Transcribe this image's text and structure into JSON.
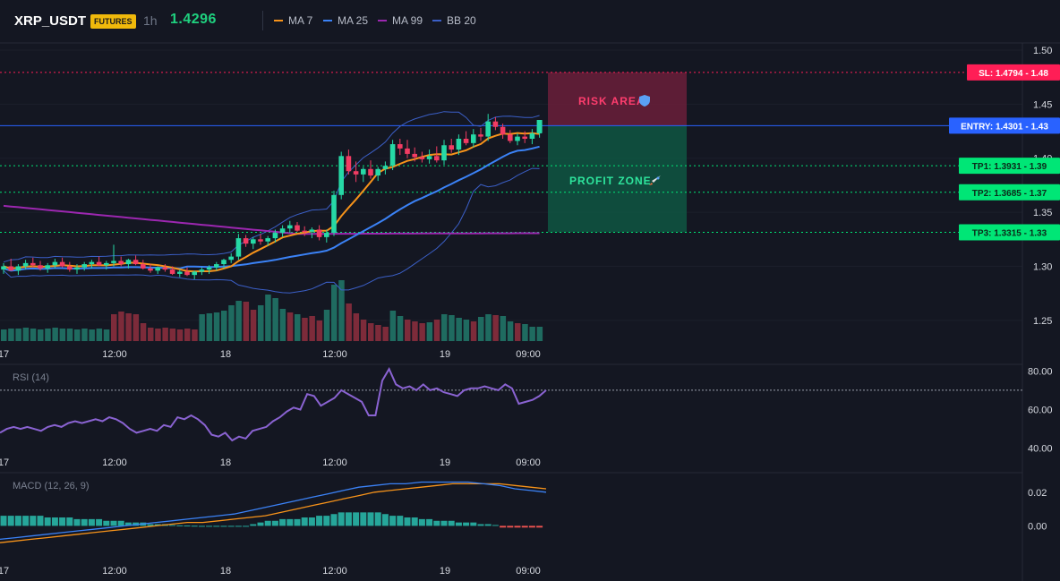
{
  "header": {
    "symbol": "XRP_USDT",
    "badge": "FUTURES",
    "timeframe": "1h",
    "last_price": "1.4296",
    "indicators": [
      {
        "label": "MA 7",
        "color": "#f7931a"
      },
      {
        "label": "MA 25",
        "color": "#3b82f6"
      },
      {
        "label": "MA 99",
        "color": "#9c27b0"
      },
      {
        "label": "BB 20",
        "color": "#3b5fc7"
      }
    ]
  },
  "colors": {
    "up": "#26d9a6",
    "down": "#f23c63",
    "vol_up": "#1f6b60",
    "vol_down": "#7d2b3a",
    "ma7": "#f7931a",
    "ma25": "#3b82f6",
    "ma99": "#9c27b0",
    "bb": "#3b5fc7",
    "rsi": "#8a63d2",
    "macd": "#3b82f6",
    "signal": "#f7931a",
    "entry": "#2962ff",
    "sl": "#ff1e56",
    "tp": "#00e676",
    "risk_zone": "#6a1f3a",
    "profit_zone": "#0e5a45"
  },
  "trade": {
    "risk_label": "RISK AREA",
    "risk_icon": "shield-icon",
    "profit_label": "PROFIT ZONE",
    "profit_icon": "rocket-icon",
    "levels": [
      {
        "key": "sl",
        "label": "SL: 1.4794 - 1.48",
        "value": 1.4794
      },
      {
        "key": "entry",
        "label": "ENTRY: 1.4301 - 1.43",
        "value": 1.4301
      },
      {
        "key": "tp1",
        "label": "TP1: 1.3931 - 1.39",
        "value": 1.3931
      },
      {
        "key": "tp2",
        "label": "TP2: 1.3685 - 1.37",
        "value": 1.3685
      },
      {
        "key": "tp3",
        "label": "TP3: 1.3315 - 1.33",
        "value": 1.3315
      }
    ]
  },
  "chart_data": [
    {
      "type": "candlestick",
      "title": "XRP_USDT 1h",
      "price_axis": {
        "range": [
          1.23,
          1.5
        ],
        "ticks": [
          "1.50",
          "1.45",
          "1.40",
          "1.35",
          "1.30",
          "1.25"
        ]
      },
      "time_axis": {
        "ticks": [
          "17",
          "12:00",
          "18",
          "12:00",
          "19",
          "09:00"
        ]
      },
      "candles": [
        [
          1.297,
          1.303,
          1.293,
          1.3
        ],
        [
          1.3,
          1.307,
          1.296,
          1.296
        ],
        [
          1.296,
          1.302,
          1.292,
          1.3
        ],
        [
          1.3,
          1.306,
          1.297,
          1.303
        ],
        [
          1.303,
          1.308,
          1.299,
          1.301
        ],
        [
          1.301,
          1.305,
          1.296,
          1.298
        ],
        [
          1.298,
          1.303,
          1.294,
          1.301
        ],
        [
          1.301,
          1.307,
          1.298,
          1.304
        ],
        [
          1.304,
          1.308,
          1.299,
          1.3
        ],
        [
          1.3,
          1.304,
          1.295,
          1.297
        ],
        [
          1.297,
          1.302,
          1.293,
          1.299
        ],
        [
          1.299,
          1.304,
          1.296,
          1.302
        ],
        [
          1.302,
          1.306,
          1.298,
          1.304
        ],
        [
          1.304,
          1.309,
          1.3,
          1.301
        ],
        [
          1.301,
          1.305,
          1.297,
          1.303
        ],
        [
          1.303,
          1.32,
          1.3,
          1.305
        ],
        [
          1.305,
          1.309,
          1.3,
          1.302
        ],
        [
          1.302,
          1.307,
          1.298,
          1.306
        ],
        [
          1.306,
          1.31,
          1.301,
          1.302
        ],
        [
          1.302,
          1.306,
          1.297,
          1.298
        ],
        [
          1.298,
          1.302,
          1.294,
          1.296
        ],
        [
          1.296,
          1.3,
          1.293,
          1.299
        ],
        [
          1.299,
          1.302,
          1.295,
          1.297
        ],
        [
          1.297,
          1.3,
          1.292,
          1.293
        ],
        [
          1.293,
          1.297,
          1.29,
          1.295
        ],
        [
          1.295,
          1.299,
          1.291,
          1.292
        ],
        [
          1.292,
          1.296,
          1.288,
          1.295
        ],
        [
          1.295,
          1.299,
          1.292,
          1.297
        ],
        [
          1.297,
          1.301,
          1.293,
          1.299
        ],
        [
          1.299,
          1.304,
          1.296,
          1.302
        ],
        [
          1.302,
          1.307,
          1.298,
          1.306
        ],
        [
          1.306,
          1.312,
          1.303,
          1.309
        ],
        [
          1.309,
          1.33,
          1.306,
          1.326
        ],
        [
          1.326,
          1.329,
          1.318,
          1.321
        ],
        [
          1.321,
          1.327,
          1.316,
          1.325
        ],
        [
          1.325,
          1.33,
          1.32,
          1.323
        ],
        [
          1.323,
          1.328,
          1.319,
          1.326
        ],
        [
          1.326,
          1.334,
          1.322,
          1.331
        ],
        [
          1.331,
          1.338,
          1.327,
          1.335
        ],
        [
          1.335,
          1.342,
          1.331,
          1.338
        ],
        [
          1.338,
          1.341,
          1.332,
          1.333
        ],
        [
          1.333,
          1.337,
          1.328,
          1.332
        ],
        [
          1.332,
          1.336,
          1.326,
          1.334
        ],
        [
          1.334,
          1.338,
          1.324,
          1.327
        ],
        [
          1.327,
          1.334,
          1.322,
          1.331
        ],
        [
          1.331,
          1.37,
          1.328,
          1.366
        ],
        [
          1.366,
          1.406,
          1.362,
          1.402
        ],
        [
          1.402,
          1.408,
          1.385,
          1.388
        ],
        [
          1.388,
          1.397,
          1.378,
          1.385
        ],
        [
          1.385,
          1.392,
          1.378,
          1.39
        ],
        [
          1.39,
          1.398,
          1.381,
          1.384
        ],
        [
          1.384,
          1.392,
          1.379,
          1.39
        ],
        [
          1.39,
          1.397,
          1.385,
          1.393
        ],
        [
          1.393,
          1.417,
          1.389,
          1.413
        ],
        [
          1.413,
          1.418,
          1.403,
          1.409
        ],
        [
          1.409,
          1.417,
          1.4,
          1.404
        ],
        [
          1.404,
          1.41,
          1.397,
          1.401
        ],
        [
          1.401,
          1.406,
          1.396,
          1.399
        ],
        [
          1.399,
          1.408,
          1.395,
          1.402
        ],
        [
          1.402,
          1.411,
          1.396,
          1.398
        ],
        [
          1.398,
          1.417,
          1.394,
          1.412
        ],
        [
          1.412,
          1.418,
          1.405,
          1.408
        ],
        [
          1.408,
          1.422,
          1.403,
          1.418
        ],
        [
          1.418,
          1.425,
          1.412,
          1.414
        ],
        [
          1.414,
          1.427,
          1.41,
          1.422
        ],
        [
          1.422,
          1.428,
          1.416,
          1.42
        ],
        [
          1.42,
          1.441,
          1.416,
          1.434
        ],
        [
          1.434,
          1.438,
          1.426,
          1.429
        ],
        [
          1.429,
          1.432,
          1.418,
          1.422
        ],
        [
          1.422,
          1.426,
          1.414,
          1.416
        ],
        [
          1.416,
          1.423,
          1.412,
          1.42
        ],
        [
          1.42,
          1.425,
          1.414,
          1.418
        ],
        [
          1.418,
          1.427,
          1.413,
          1.423
        ],
        [
          1.423,
          1.432,
          1.419,
          1.4296
        ]
      ],
      "volume": [
        [
          13,
          1
        ],
        [
          14,
          1
        ],
        [
          14,
          1
        ],
        [
          15,
          1
        ],
        [
          14,
          1
        ],
        [
          13,
          1
        ],
        [
          14,
          1
        ],
        [
          15,
          1
        ],
        [
          14,
          1
        ],
        [
          14,
          1
        ],
        [
          13,
          1
        ],
        [
          14,
          1
        ],
        [
          13,
          1
        ],
        [
          14,
          1
        ],
        [
          13,
          1
        ],
        [
          30,
          -1
        ],
        [
          33,
          -1
        ],
        [
          31,
          -1
        ],
        [
          30,
          -1
        ],
        [
          20,
          -1
        ],
        [
          15,
          -1
        ],
        [
          14,
          -1
        ],
        [
          15,
          -1
        ],
        [
          14,
          -1
        ],
        [
          13,
          -1
        ],
        [
          14,
          -1
        ],
        [
          13,
          -1
        ],
        [
          30,
          1
        ],
        [
          31,
          1
        ],
        [
          32,
          1
        ],
        [
          34,
          1
        ],
        [
          40,
          1
        ],
        [
          45,
          1
        ],
        [
          44,
          -1
        ],
        [
          35,
          -1
        ],
        [
          40,
          1
        ],
        [
          52,
          1
        ],
        [
          48,
          1
        ],
        [
          36,
          1
        ],
        [
          32,
          -1
        ],
        [
          30,
          1
        ],
        [
          26,
          -1
        ],
        [
          28,
          -1
        ],
        [
          23,
          -1
        ],
        [
          35,
          1
        ],
        [
          63,
          1
        ],
        [
          68,
          1
        ],
        [
          42,
          -1
        ],
        [
          31,
          -1
        ],
        [
          24,
          -1
        ],
        [
          20,
          -1
        ],
        [
          18,
          -1
        ],
        [
          16,
          -1
        ],
        [
          34,
          1
        ],
        [
          28,
          1
        ],
        [
          24,
          -1
        ],
        [
          22,
          -1
        ],
        [
          20,
          -1
        ],
        [
          21,
          1
        ],
        [
          24,
          -1
        ],
        [
          30,
          1
        ],
        [
          29,
          1
        ],
        [
          26,
          1
        ],
        [
          24,
          1
        ],
        [
          22,
          -1
        ],
        [
          27,
          1
        ],
        [
          30,
          1
        ],
        [
          29,
          -1
        ],
        [
          28,
          1
        ],
        [
          22,
          1
        ],
        [
          20,
          -1
        ],
        [
          19,
          1
        ],
        [
          16,
          1
        ],
        [
          16,
          1
        ]
      ]
    },
    {
      "type": "line",
      "title": "RSI (14)",
      "ylim": [
        38,
        82
      ],
      "ticks": [
        "80.00",
        "60.00",
        "40.00"
      ],
      "guide": 70,
      "values": [
        48,
        50,
        51,
        50,
        51,
        50,
        49,
        51,
        52,
        51,
        53,
        54,
        53,
        54,
        55,
        54,
        56,
        55,
        53,
        50,
        48,
        49,
        50,
        49,
        52,
        51,
        56,
        55,
        57,
        55,
        52,
        47,
        46,
        48,
        44,
        46,
        45,
        49,
        50,
        51,
        54,
        56,
        59,
        61,
        60,
        68,
        67,
        62,
        64,
        66,
        70,
        68,
        66,
        64,
        57,
        57,
        75,
        81,
        73,
        71,
        72,
        70,
        73,
        70,
        71,
        69,
        68,
        67,
        70,
        71,
        71,
        72,
        71,
        70,
        73,
        71,
        63,
        64,
        65,
        67,
        70
      ]
    },
    {
      "type": "combo",
      "title": "MACD (12, 26, 9)",
      "ylim": [
        -0.02,
        0.03
      ],
      "ticks": [
        "0.02",
        "0.00"
      ],
      "histogram": [
        0.006,
        0.006,
        0.006,
        0.006,
        0.006,
        0.006,
        0.005,
        0.005,
        0.005,
        0.005,
        0.004,
        0.004,
        0.004,
        0.004,
        0.003,
        0.003,
        0.003,
        0.002,
        0.002,
        0.002,
        0.001,
        0.001,
        0.001,
        0.0005,
        0.0003,
        0.0002,
        0.0001,
        0,
        0,
        0,
        0,
        0,
        0,
        0,
        0.001,
        0.002,
        0.003,
        0.003,
        0.004,
        0.004,
        0.004,
        0.005,
        0.005,
        0.006,
        0.006,
        0.007,
        0.008,
        0.008,
        0.008,
        0.008,
        0.008,
        0.008,
        0.007,
        0.006,
        0.006,
        0.005,
        0.005,
        0.004,
        0.004,
        0.003,
        0.003,
        0.003,
        0.002,
        0.002,
        0.002,
        0.001,
        0.001,
        0.0005,
        -0.001,
        -0.001,
        -0.001,
        -0.001,
        -0.001,
        -0.001
      ],
      "macd": [
        -0.008,
        -0.007,
        -0.006,
        -0.005,
        -0.004,
        -0.003,
        -0.002,
        -0.001,
        0,
        0.001,
        0.002,
        0.003,
        0.004,
        0.005,
        0.006,
        0.007,
        0.009,
        0.011,
        0.013,
        0.015,
        0.017,
        0.019,
        0.021,
        0.023,
        0.024,
        0.025,
        0.025,
        0.026,
        0.026,
        0.026,
        0.026,
        0.025,
        0.024,
        0.022,
        0.021,
        0.02
      ],
      "signal": [
        -0.01,
        -0.009,
        -0.008,
        -0.007,
        -0.006,
        -0.005,
        -0.004,
        -0.003,
        -0.002,
        -0.001,
        0,
        0.001,
        0.002,
        0.002,
        0.003,
        0.004,
        0.005,
        0.006,
        0.008,
        0.01,
        0.012,
        0.014,
        0.016,
        0.018,
        0.02,
        0.021,
        0.022,
        0.023,
        0.024,
        0.025,
        0.025,
        0.025,
        0.025,
        0.024,
        0.023,
        0.022
      ]
    }
  ]
}
